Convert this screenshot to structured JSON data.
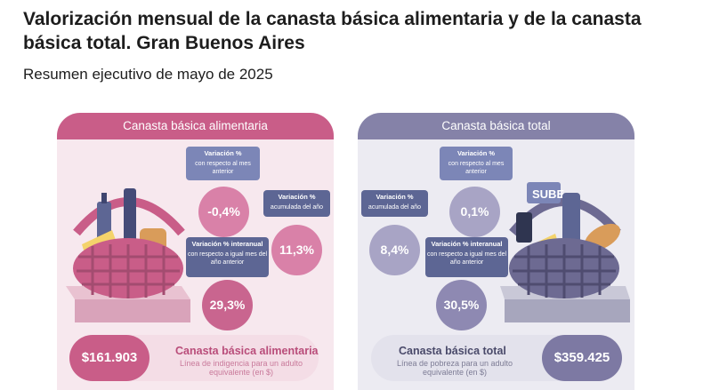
{
  "header": {
    "title": "Valorización mensual de la canasta básica alimentaria y de la canasta básica total. Gran Buenos Aires",
    "subtitle": "Resumen ejecutivo de mayo de 2025"
  },
  "left": {
    "heading": "Canasta básica alimentaria",
    "monthly": {
      "title": "Variación %",
      "desc": "con respecto al mes anterior",
      "value": "-0,4%"
    },
    "accumulated": {
      "title": "Variación %",
      "desc": "acumulada del año",
      "value": "11,3%"
    },
    "yearly": {
      "title": "Variación % interanual",
      "desc": "con respecto a igual mes del año anterior",
      "value": "29,3%"
    },
    "price": "$161.903",
    "bottom_title": "Canasta básica alimentaria",
    "bottom_desc": "Línea de indigencia para un adulto equivalente (en $)"
  },
  "right": {
    "heading": "Canasta básica total",
    "monthly": {
      "title": "Variación %",
      "desc": "con respecto al mes anterior",
      "value": "0,1%"
    },
    "accumulated": {
      "title": "Variación %",
      "desc": "acumulada del año",
      "value": "8,4%"
    },
    "yearly": {
      "title": "Variación % interanual",
      "desc": "con respecto a igual mes del año anterior",
      "value": "30,5%"
    },
    "price": "$359.425",
    "bottom_title": "Canasta básica total",
    "bottom_desc": "Línea de pobreza para un adulto equivalente (en $)",
    "card_label": "SUBE"
  },
  "colors": {
    "pink": "#c95d88",
    "lilac": "#8582a8",
    "blue_box": "#7c86b7"
  }
}
